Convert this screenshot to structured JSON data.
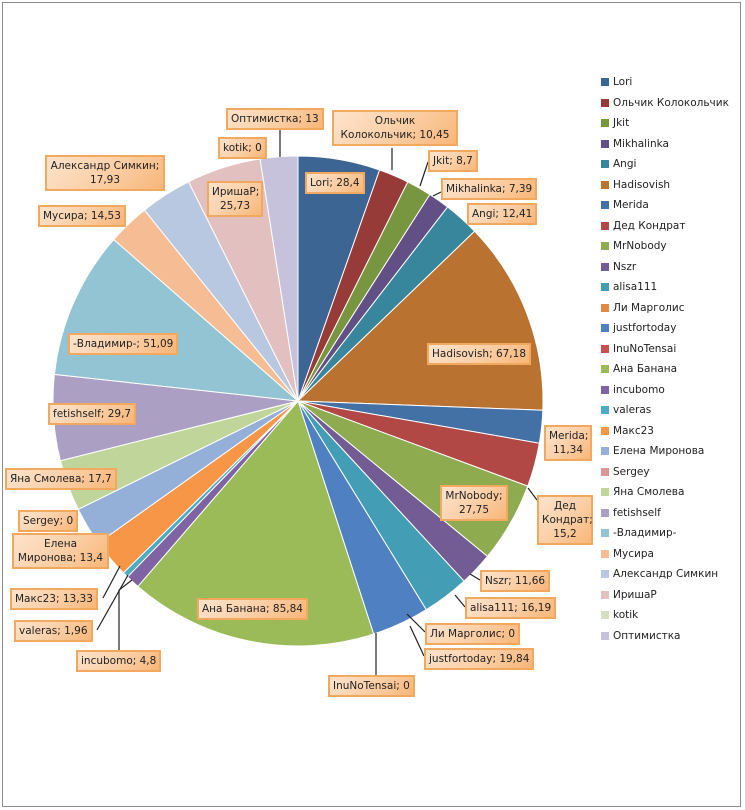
{
  "chart_data": {
    "type": "pie",
    "title": "",
    "legend_position": "right",
    "start_angle": "top, clockwise",
    "slices": [
      {
        "name": "Lori",
        "value": 28.4,
        "label": "Lori; 28,4",
        "color": "#3d6593"
      },
      {
        "name": "Ольчик Колокольчик",
        "value": 10.45,
        "label": "Ольчик Колокольчик; 10,45",
        "color": "#973b39"
      },
      {
        "name": "Jkit",
        "value": 8.7,
        "label": "Jkit; 8,7",
        "color": "#789640"
      },
      {
        "name": "Mikhalinka",
        "value": 7.39,
        "label": "Mikhalinka; 7,39",
        "color": "#624f85"
      },
      {
        "name": "Angi",
        "value": 12.41,
        "label": "Angi; 12,41",
        "color": "#37869b"
      },
      {
        "name": "Hadisovish",
        "value": 67.18,
        "label": "Hadisovish; 67,18",
        "color": "#b9722f"
      },
      {
        "name": "Merida",
        "value": 11.34,
        "label": "Merida; 11,34",
        "color": "#4371a6"
      },
      {
        "name": "Дед Кондрат",
        "value": 15.2,
        "label": "Дед Кондрат; 15,2",
        "color": "#b24845"
      },
      {
        "name": "MrNobody",
        "value": 27.75,
        "label": "MrNobody; 27,75",
        "color": "#8fab50"
      },
      {
        "name": "Nszr",
        "value": 11.66,
        "label": "Nszr; 11,66",
        "color": "#735c93"
      },
      {
        "name": "alisa111",
        "value": 16.19,
        "label": "alisa111; 16,19",
        "color": "#439db5"
      },
      {
        "name": "Ли Марголис",
        "value": 0,
        "label": "Ли Марголис; 0",
        "color": "#e08a43"
      },
      {
        "name": "justfortoday",
        "value": 19.84,
        "label": "justfortoday; 19,84",
        "color": "#4f81c2"
      },
      {
        "name": "InuNoTensai",
        "value": 0,
        "label": "InuNoTensai; 0",
        "color": "#c9504d"
      },
      {
        "name": "Ана Банана",
        "value": 85.84,
        "label": "Ана Банана; 85,84",
        "color": "#9bbb59"
      },
      {
        "name": "incubomo",
        "value": 4.8,
        "label": "incubomo; 4,8",
        "color": "#7f63a3"
      },
      {
        "name": "valeras",
        "value": 1.96,
        "label": "valeras; 1,96",
        "color": "#4bacc6"
      },
      {
        "name": "Макс23",
        "value": 13.33,
        "label": "Макс23; 13,33",
        "color": "#f79646"
      },
      {
        "name": "Елена Миронова",
        "value": 13.4,
        "label": "Елена Миронова; 13,4",
        "color": "#95b0d8"
      },
      {
        "name": "Sergey",
        "value": 0,
        "label": "Sergey; 0",
        "color": "#d99694"
      },
      {
        "name": "Яна Смолева",
        "value": 17.7,
        "label": "Яна Смолева; 17,7",
        "color": "#c0d59a"
      },
      {
        "name": "fetishself",
        "value": 29.7,
        "label": "fetishself; 29,7",
        "color": "#ab9fc4"
      },
      {
        "name": "-Владимир-",
        "value": 51.09,
        "label": "-Владимир-; 51,09",
        "color": "#93c4d4"
      },
      {
        "name": "Мусира",
        "value": 14.53,
        "label": "Мусира; 14,53",
        "color": "#f6bc94"
      },
      {
        "name": "Александр Симкин",
        "value": 17.93,
        "label": "Александр Симкин; 17,93",
        "color": "#b8c8e0"
      },
      {
        "name": "ИришаР",
        "value": 25.73,
        "label": "ИришаР; 25,73",
        "color": "#e2c0bf"
      },
      {
        "name": "kotik",
        "value": 0,
        "label": "kotik; 0",
        "color": "#d4e0c1"
      },
      {
        "name": "Оптимистка",
        "value": 13,
        "label": "Оптимистка; 13",
        "color": "#c7c2dc"
      }
    ]
  }
}
